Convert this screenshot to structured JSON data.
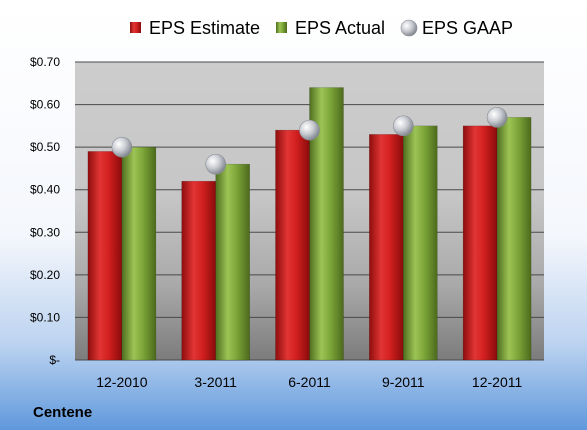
{
  "chart_data": {
    "type": "bar",
    "categories": [
      "12-2010",
      "3-2011",
      "6-2011",
      "9-2011",
      "12-2011"
    ],
    "series": [
      {
        "name": "EPS Estimate",
        "kind": "bar",
        "color": "#d42020",
        "values": [
          0.49,
          0.42,
          0.54,
          0.53,
          0.55
        ]
      },
      {
        "name": "EPS Actual",
        "kind": "bar",
        "color": "#7ea83a",
        "values": [
          0.5,
          0.46,
          0.64,
          0.55,
          0.57
        ]
      },
      {
        "name": "EPS GAAP",
        "kind": "scatter",
        "color": "#b8bcc4",
        "values": [
          0.5,
          0.46,
          0.54,
          0.55,
          0.57
        ]
      }
    ],
    "yticks": [
      {
        "value": 0,
        "label": "$-"
      },
      {
        "value": 0.1,
        "label": "$0.10"
      },
      {
        "value": 0.2,
        "label": "$0.20"
      },
      {
        "value": 0.3,
        "label": "$0.30"
      },
      {
        "value": 0.4,
        "label": "$0.40"
      },
      {
        "value": 0.5,
        "label": "$0.50"
      },
      {
        "value": 0.6,
        "label": "$0.60"
      },
      {
        "value": 0.7,
        "label": "$0.70"
      }
    ],
    "ylim": [
      0,
      0.7
    ],
    "grid": true,
    "legend": "top",
    "title": "",
    "xlabel": "",
    "ylabel": ""
  },
  "company": "Centene"
}
